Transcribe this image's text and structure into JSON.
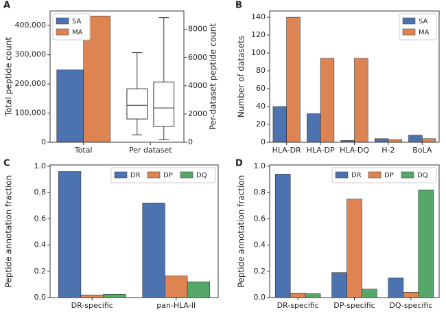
{
  "chart_data": [
    {
      "type": "bar",
      "label": "A",
      "ylabel": "Total peptide count",
      "y2label": "Per-dataset peptide count",
      "categories": [
        "Total",
        "Per dataset"
      ],
      "series": [
        {
          "name": "SA",
          "color": "#4c72b0",
          "values": [
            248000,
            null
          ]
        },
        {
          "name": "MA",
          "color": "#dd8452",
          "values": [
            433000,
            null
          ]
        }
      ],
      "boxes": [
        {
          "name": "SA",
          "color": "#4c72b0",
          "axis": "y2",
          "whislo": 530,
          "q1": 1650,
          "med": 2620,
          "q3": 3790,
          "whishi": 6350
        },
        {
          "name": "MA",
          "color": "#dd8452",
          "axis": "y2",
          "whislo": 190,
          "q1": 1120,
          "med": 2430,
          "q3": 4270,
          "whishi": 8830
        }
      ],
      "ylim": [
        0,
        450000
      ],
      "yticks": [
        0,
        {
          "value": 100000,
          "label": "100,000"
        },
        {
          "value": 200000,
          "label": "200,000"
        },
        {
          "value": 300000,
          "label": "300,000"
        },
        {
          "value": 400000,
          "label": "400,000"
        }
      ],
      "y2lim": [
        0,
        9300
      ],
      "y2ticks": [
        0,
        2000,
        4000,
        6000,
        8000
      ],
      "legend_loc": "upper left",
      "legend_ncol": 1
    },
    {
      "type": "bar",
      "label": "B",
      "ylabel": "Number of datasets",
      "categories": [
        "HLA-DR",
        "HLA-DP",
        "HLA-DQ",
        "H-2",
        "BoLA"
      ],
      "series": [
        {
          "name": "SA",
          "color": "#4c72b0",
          "values": [
            40,
            32,
            2,
            4,
            8
          ]
        },
        {
          "name": "MA",
          "color": "#dd8452",
          "values": [
            140,
            94,
            94,
            3,
            4
          ]
        }
      ],
      "ylim": [
        0,
        147
      ],
      "yticks": [
        0,
        20,
        40,
        60,
        80,
        100,
        120,
        140
      ],
      "legend_loc": "upper right",
      "legend_ncol": 1
    },
    {
      "type": "bar",
      "label": "C",
      "ylabel": "Peptide annotation fraction",
      "categories": [
        "DR-specific",
        "pan-HLA-II"
      ],
      "series": [
        {
          "name": "DR",
          "color": "#4c72b0",
          "values": [
            0.96,
            0.72
          ]
        },
        {
          "name": "DP",
          "color": "#dd8452",
          "values": [
            0.02,
            0.165
          ]
        },
        {
          "name": "DQ",
          "color": "#55a868",
          "values": [
            0.025,
            0.12
          ]
        }
      ],
      "ylim": [
        0,
        1.01
      ],
      "yticks": [
        {
          "value": 0,
          "label": "0.0"
        },
        {
          "value": 0.2,
          "label": "0.2"
        },
        {
          "value": 0.4,
          "label": "0.4"
        },
        {
          "value": 0.6,
          "label": "0.6"
        },
        {
          "value": 0.8,
          "label": "0.8"
        },
        {
          "value": 1,
          "label": "1.0"
        }
      ],
      "legend_loc": "upper right",
      "legend_ncol": 3
    },
    {
      "type": "bar",
      "label": "D",
      "ylabel": "Peptide annotation fraction",
      "categories": [
        "DR-specific",
        "DP-specific",
        "DQ-specific"
      ],
      "series": [
        {
          "name": "DR",
          "color": "#4c72b0",
          "values": [
            0.94,
            0.19,
            0.15
          ]
        },
        {
          "name": "DP",
          "color": "#dd8452",
          "values": [
            0.035,
            0.75,
            0.04
          ]
        },
        {
          "name": "DQ",
          "color": "#55a868",
          "values": [
            0.03,
            0.065,
            0.82
          ]
        }
      ],
      "ylim": [
        0,
        1.01
      ],
      "yticks": [
        {
          "value": 0,
          "label": "0.0"
        },
        {
          "value": 0.2,
          "label": "0.2"
        },
        {
          "value": 0.4,
          "label": "0.4"
        },
        {
          "value": 0.6,
          "label": "0.6"
        },
        {
          "value": 0.8,
          "label": "0.8"
        },
        {
          "value": 1,
          "label": "1.0"
        }
      ],
      "legend_loc": "upper right",
      "legend_ncol": 3
    }
  ]
}
